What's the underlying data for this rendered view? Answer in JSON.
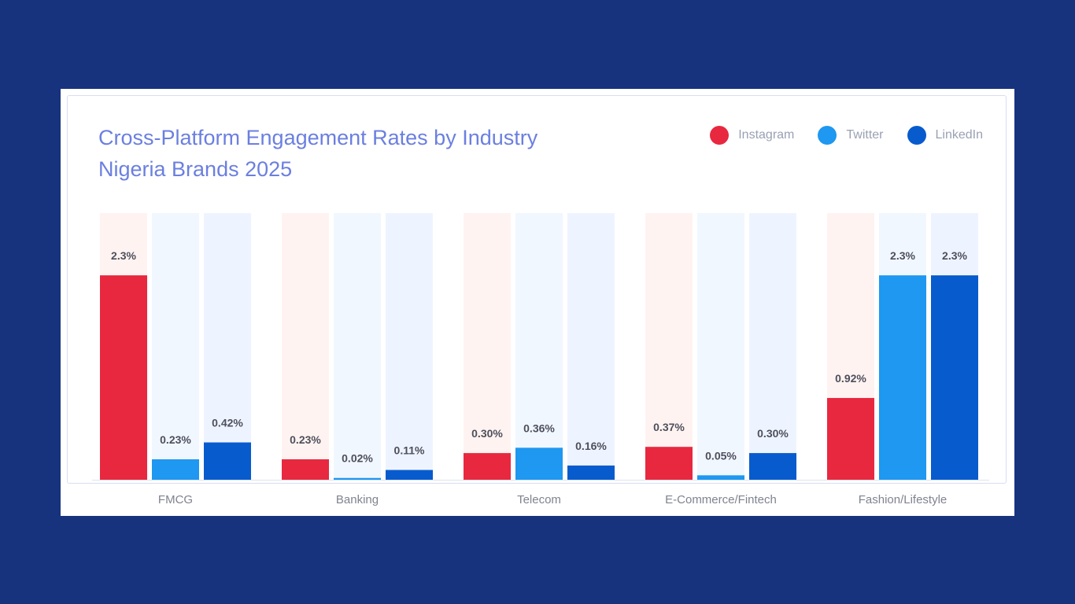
{
  "chart_data": {
    "type": "bar",
    "title": "Cross-Platform Engagement Rates by Industry Nigeria Brands 2025",
    "categories": [
      "FMCG",
      "Banking",
      "Telecom",
      "E-Commerce/Fintech",
      "Fashion/Lifestyle"
    ],
    "series": [
      {
        "name": "Instagram",
        "color": "#e8283f",
        "track_color": "#fff3f1",
        "values": [
          2.3,
          0.23,
          0.3,
          0.37,
          0.92
        ],
        "labels": [
          "2.3%",
          "0.23%",
          "0.30%",
          "0.37%",
          "0.92%"
        ]
      },
      {
        "name": "Twitter",
        "color": "#1e98f0",
        "track_color": "#f1f7ff",
        "values": [
          0.23,
          0.02,
          0.36,
          0.05,
          2.3
        ],
        "labels": [
          "0.23%",
          "0.02%",
          "0.36%",
          "0.05%",
          "2.3%"
        ]
      },
      {
        "name": "LinkedIn",
        "color": "#075bcd",
        "track_color": "#eef4ff",
        "values": [
          0.42,
          0.11,
          0.16,
          0.3,
          2.3
        ],
        "labels": [
          "0.42%",
          "0.11%",
          "0.16%",
          "0.30%",
          "2.3%"
        ]
      }
    ],
    "ylim": [
      0,
      3.0
    ],
    "grid": false,
    "legend_position": "top-right",
    "xlabel": "",
    "ylabel": ""
  }
}
